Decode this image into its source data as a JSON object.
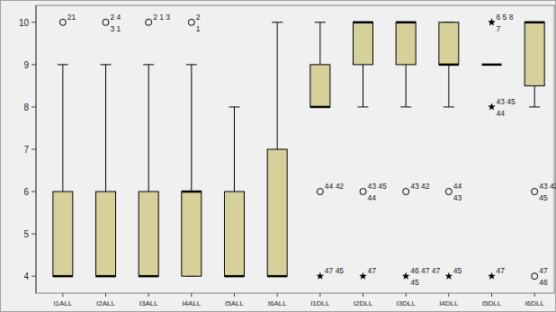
{
  "chart_data": {
    "type": "box",
    "color": "#d6d09a",
    "categories": [
      "I1ALL",
      "I2ALL",
      "I3ALL",
      "I4ALL",
      "I5ALL",
      "I6ALL",
      "I1DLL",
      "I2DLL",
      "I3DLL",
      "I4DLL",
      "I5DLL",
      "I6DLL"
    ],
    "ylim": [
      3.6,
      10.4
    ],
    "yticks": [
      4,
      5,
      6,
      7,
      8,
      9,
      10
    ],
    "grid": false,
    "boxes": [
      {
        "min": 4,
        "q1": 4,
        "median": 4,
        "q3": 6,
        "max": 9,
        "outliers": [
          {
            "value": 10,
            "marker": "circle",
            "labels": [
              "21"
            ]
          }
        ]
      },
      {
        "min": 4,
        "q1": 4,
        "median": 4,
        "q3": 6,
        "max": 9,
        "outliers": [
          {
            "value": 10,
            "marker": "circle",
            "labels": [
              "2 4",
              "3 1"
            ]
          }
        ]
      },
      {
        "min": 4,
        "q1": 4,
        "median": 4,
        "q3": 6,
        "max": 9,
        "outliers": [
          {
            "value": 10,
            "marker": "circle",
            "labels": [
              "2 1 3"
            ]
          }
        ]
      },
      {
        "min": 4,
        "q1": 4,
        "median": 6,
        "q3": 6,
        "max": 9,
        "outliers": [
          {
            "value": 10,
            "marker": "circle",
            "labels": [
              "2",
              "1"
            ]
          }
        ]
      },
      {
        "min": 4,
        "q1": 4,
        "median": 4,
        "q3": 6,
        "max": 8,
        "outliers": []
      },
      {
        "min": 4,
        "q1": 4,
        "median": 4,
        "q3": 7,
        "max": 10,
        "outliers": []
      },
      {
        "min": 8,
        "q1": 8,
        "median": 8,
        "q3": 9,
        "max": 10,
        "outliers": [
          {
            "value": 6,
            "marker": "circle",
            "labels": [
              "44 42"
            ]
          },
          {
            "value": 4,
            "marker": "star",
            "labels": [
              "47 45"
            ]
          }
        ]
      },
      {
        "min": 8,
        "q1": 9,
        "median": 10,
        "q3": 10,
        "max": 10,
        "outliers": [
          {
            "value": 6,
            "marker": "circle",
            "labels": [
              "43 45",
              "44"
            ]
          },
          {
            "value": 4,
            "marker": "star",
            "labels": [
              "47"
            ]
          }
        ]
      },
      {
        "min": 8,
        "q1": 9,
        "median": 10,
        "q3": 10,
        "max": 10,
        "outliers": [
          {
            "value": 6,
            "marker": "circle",
            "labels": [
              "43 42"
            ]
          },
          {
            "value": 4,
            "marker": "star",
            "labels": [
              "46 47 47",
              "45"
            ]
          }
        ]
      },
      {
        "min": 8,
        "q1": 9,
        "median": 9,
        "q3": 10,
        "max": 10,
        "outliers": [
          {
            "value": 6,
            "marker": "circle",
            "labels": [
              "44",
              "43"
            ]
          },
          {
            "value": 4,
            "marker": "star",
            "labels": [
              "45"
            ]
          }
        ]
      },
      {
        "min": 9,
        "q1": 9,
        "median": 9,
        "q3": 9,
        "max": 9,
        "outliers": [
          {
            "value": 10,
            "marker": "star",
            "labels": [
              "6 5 8",
              "7"
            ]
          },
          {
            "value": 8,
            "marker": "star",
            "labels": [
              "43 45",
              "44"
            ]
          },
          {
            "value": 4,
            "marker": "star",
            "labels": [
              "47"
            ]
          }
        ]
      },
      {
        "min": 8,
        "q1": 8.5,
        "median": 10,
        "q3": 10,
        "max": 10,
        "outliers": [
          {
            "value": 6,
            "marker": "circle",
            "labels": [
              "43 42",
              "45"
            ]
          },
          {
            "value": 4,
            "marker": "circle",
            "labels": [
              "47",
              "46"
            ]
          }
        ]
      }
    ]
  }
}
